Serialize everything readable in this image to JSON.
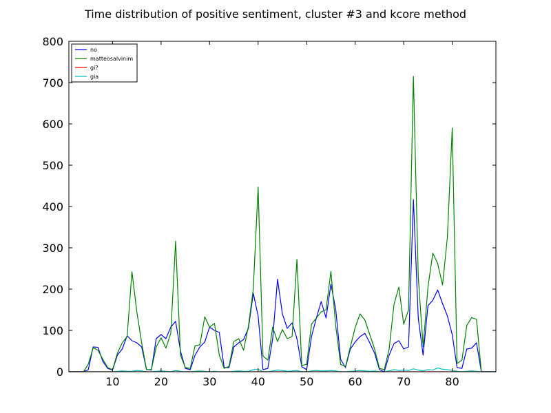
{
  "chart_data": {
    "type": "line",
    "title": "Time distribution of positive sentiment, cluster #3 and kcore method",
    "xlabel": "",
    "ylabel": "",
    "xlim": [
      1,
      89
    ],
    "ylim": [
      0,
      800
    ],
    "x_ticks": [
      10,
      20,
      30,
      40,
      50,
      60,
      70,
      80
    ],
    "y_ticks": [
      0,
      100,
      200,
      300,
      400,
      500,
      600,
      700,
      800
    ],
    "grid": false,
    "legend_position": "top-left",
    "x": [
      1,
      2,
      3,
      4,
      5,
      6,
      7,
      8,
      9,
      10,
      11,
      12,
      13,
      14,
      15,
      16,
      17,
      18,
      19,
      20,
      21,
      22,
      23,
      24,
      25,
      26,
      27,
      28,
      29,
      30,
      31,
      32,
      33,
      34,
      35,
      36,
      37,
      38,
      39,
      40,
      41,
      42,
      43,
      44,
      45,
      46,
      47,
      48,
      49,
      50,
      51,
      52,
      53,
      54,
      55,
      56,
      57,
      58,
      59,
      60,
      61,
      62,
      63,
      64,
      65,
      66,
      67,
      68,
      69,
      70,
      71,
      72,
      73,
      74,
      75,
      76,
      77,
      78,
      79,
      80,
      81,
      82,
      83,
      84,
      85,
      86,
      87,
      88,
      89
    ],
    "series": [
      {
        "name": "no",
        "color": "#0000ff",
        "values": [
          0,
          0,
          0,
          0,
          5,
          60,
          59,
          25,
          8,
          4,
          40,
          55,
          87,
          75,
          70,
          60,
          5,
          4,
          80,
          90,
          80,
          108,
          122,
          50,
          8,
          5,
          40,
          60,
          72,
          108,
          100,
          95,
          10,
          10,
          60,
          70,
          78,
          105,
          190,
          135,
          5,
          8,
          80,
          224,
          140,
          105,
          118,
          80,
          12,
          5,
          85,
          130,
          170,
          130,
          212,
          150,
          30,
          10,
          55,
          72,
          85,
          93,
          70,
          45,
          5,
          0,
          40,
          68,
          75,
          55,
          60,
          417,
          130,
          40,
          160,
          173,
          198,
          165,
          135,
          90,
          10,
          8,
          55,
          57,
          70,
          0,
          0,
          0,
          0
        ]
      },
      {
        "name": "matteosalvinim",
        "color": "#008000",
        "values": [
          0,
          0,
          0,
          0,
          18,
          58,
          52,
          30,
          10,
          5,
          45,
          70,
          85,
          242,
          145,
          70,
          5,
          5,
          60,
          82,
          57,
          93,
          316,
          40,
          10,
          8,
          63,
          65,
          133,
          108,
          117,
          40,
          8,
          13,
          73,
          80,
          52,
          110,
          200,
          447,
          38,
          28,
          108,
          73,
          102,
          80,
          85,
          272,
          15,
          18,
          115,
          130,
          145,
          150,
          243,
          110,
          18,
          12,
          60,
          107,
          140,
          125,
          90,
          55,
          8,
          5,
          55,
          163,
          205,
          115,
          150,
          715,
          230,
          60,
          205,
          287,
          262,
          210,
          325,
          590,
          20,
          28,
          112,
          131,
          127,
          0,
          0,
          0,
          0
        ]
      },
      {
        "name": "gi?",
        "color": "#ff0000",
        "values": [
          0,
          0,
          0,
          0,
          0,
          0,
          0,
          0,
          0,
          0,
          0,
          0,
          0,
          0,
          0,
          0,
          0,
          0,
          0,
          0,
          0,
          0,
          0,
          0,
          0,
          0,
          0,
          0,
          0,
          0,
          0,
          0,
          0,
          0,
          0,
          0,
          0,
          0,
          0,
          0,
          0,
          0,
          0,
          0,
          0,
          0,
          0,
          0,
          0,
          0,
          0,
          0,
          0,
          0,
          0,
          0,
          0,
          0,
          0,
          0,
          0,
          0,
          0,
          0,
          0,
          0,
          0,
          0,
          0,
          0,
          0,
          0,
          0,
          0,
          0,
          0,
          0,
          0,
          0,
          0,
          0,
          0,
          0,
          0,
          0,
          0,
          0,
          0,
          0
        ]
      },
      {
        "name": "gia",
        "color": "#00bfbf",
        "values": [
          0,
          0,
          0,
          0,
          0,
          0,
          0,
          0,
          0,
          0,
          1,
          2,
          1,
          1,
          3,
          2,
          0,
          0,
          1,
          2,
          1,
          0,
          3,
          1,
          0,
          0,
          1,
          2,
          1,
          0,
          1,
          0,
          0,
          0,
          1,
          2,
          1,
          1,
          5,
          6,
          0,
          0,
          2,
          4,
          3,
          1,
          2,
          3,
          0,
          0,
          2,
          3,
          2,
          2,
          3,
          2,
          0,
          0,
          1,
          2,
          3,
          2,
          1,
          2,
          0,
          0,
          2,
          5,
          3,
          4,
          3,
          7,
          4,
          2,
          5,
          4,
          9,
          6,
          5,
          3,
          1,
          0,
          1,
          2,
          1,
          0,
          0,
          0,
          0
        ]
      }
    ]
  }
}
